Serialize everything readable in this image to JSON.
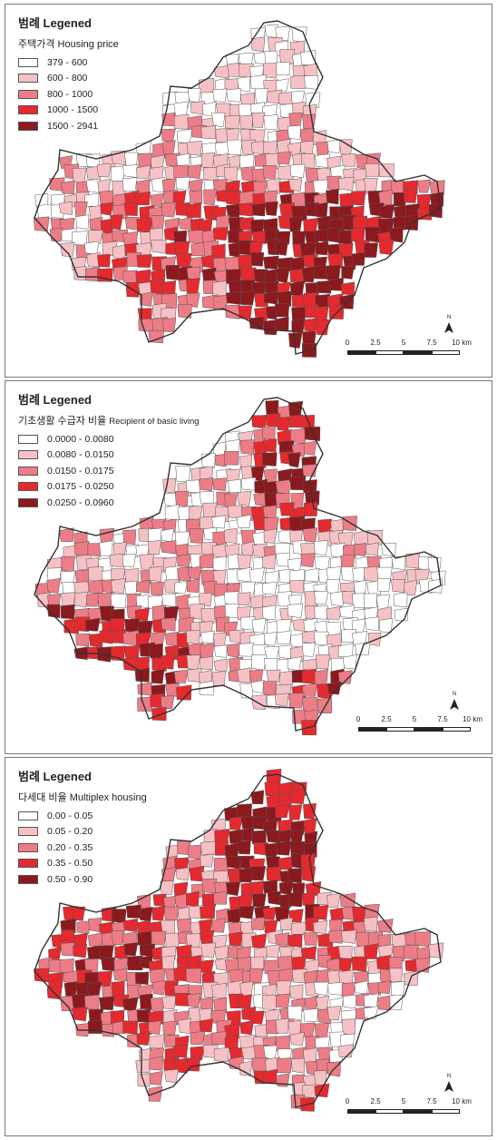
{
  "colors": {
    "classes": [
      "#ffffff",
      "#f6c1c5",
      "#ec7d86",
      "#e42a2f",
      "#8b1a1f"
    ],
    "border": "#333333"
  },
  "north_label": "N",
  "scale_ticks": [
    "0",
    "2.5",
    "5",
    "7.5",
    "10 km"
  ],
  "panels": [
    {
      "legend_title": "범례 Legened",
      "variable_kr": "주택가격",
      "variable_en": "Housing price",
      "classes": [
        "379 - 600",
        "600 - 800",
        "800 - 1000",
        "1000 - 1500",
        "1500 - 2941"
      ]
    },
    {
      "legend_title": "범례 Legened",
      "variable_kr": "기초생활 수급자 비율",
      "variable_en": "Recipient of basic living",
      "classes": [
        "0.0000 - 0.0080",
        "0.0080 - 0.0150",
        "0.0150 - 0.0175",
        "0.0175 - 0.0250",
        "0.0250 - 0.0960"
      ]
    },
    {
      "legend_title": "범례 Legened",
      "variable_kr": "다세대 비율",
      "variable_en": "Multiplex housing",
      "classes": [
        "0.00 - 0.05",
        "0.05 - 0.20",
        "0.20 - 0.35",
        "0.35 - 0.50",
        "0.50 - 0.90"
      ]
    }
  ]
}
